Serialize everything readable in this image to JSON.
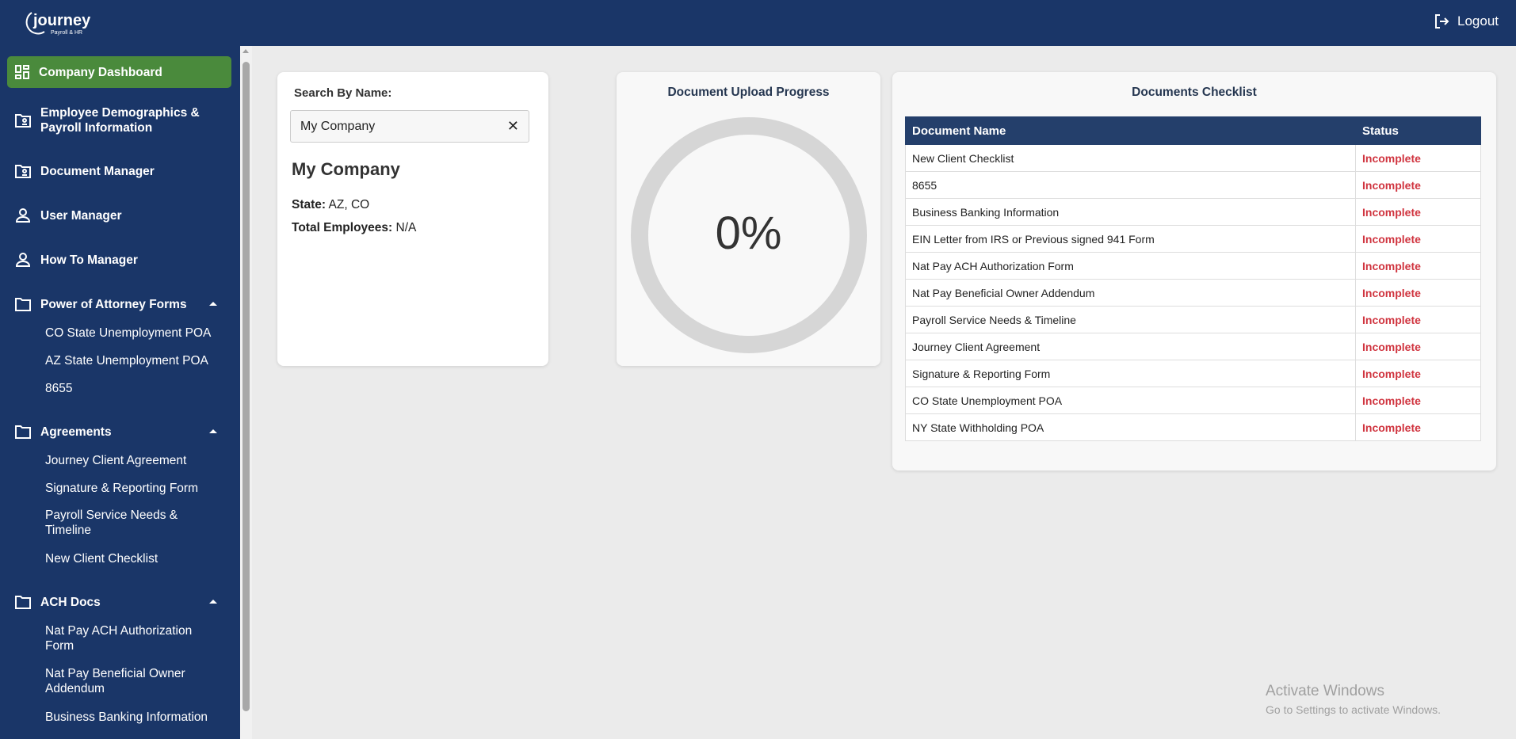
{
  "header": {
    "logo_text": "journey Payroll & HR",
    "logout_label": "Logout"
  },
  "sidebar": {
    "items": [
      {
        "label": "Company Dashboard",
        "icon": "dashboard-icon",
        "active": true
      },
      {
        "label": "Employee Demographics & Payroll Information",
        "icon": "folder-user-icon"
      },
      {
        "label": "Document Manager",
        "icon": "folder-user-icon"
      },
      {
        "label": "User Manager",
        "icon": "user-icon"
      },
      {
        "label": "How To Manager",
        "icon": "user-icon"
      }
    ],
    "groups": [
      {
        "label": "Power of Attorney Forms",
        "expanded": true,
        "children": [
          "CO State Unemployment POA",
          "AZ State Unemployment POA",
          "8655"
        ]
      },
      {
        "label": "Agreements",
        "expanded": true,
        "children": [
          "Journey Client Agreement",
          "Signature & Reporting Form",
          "Payroll Service Needs & Timeline",
          "New Client Checklist"
        ]
      },
      {
        "label": "ACH Docs",
        "expanded": true,
        "children": [
          "Nat Pay ACH Authorization Form",
          "Nat Pay Beneficial Owner Addendum",
          "Business Banking Information"
        ]
      }
    ]
  },
  "search": {
    "label": "Search By Name:",
    "value": "My Company",
    "company_name": "My Company",
    "state_label": "State:",
    "state_value": "AZ, CO",
    "employees_label": "Total Employees:",
    "employees_value": "N/A"
  },
  "progress": {
    "title": "Document Upload Progress",
    "value_text": "0%",
    "percent": 0,
    "track_color": "#d6d6d6"
  },
  "checklist": {
    "title": "Documents Checklist",
    "columns": [
      "Document Name",
      "Status"
    ],
    "rows": [
      [
        "New Client Checklist",
        "Incomplete"
      ],
      [
        "8655",
        "Incomplete"
      ],
      [
        "Business Banking Information",
        "Incomplete"
      ],
      [
        "EIN Letter from IRS or Previous signed 941 Form",
        "Incomplete"
      ],
      [
        "Nat Pay ACH Authorization Form",
        "Incomplete"
      ],
      [
        "Nat Pay Beneficial Owner Addendum",
        "Incomplete"
      ],
      [
        "Payroll Service Needs & Timeline",
        "Incomplete"
      ],
      [
        "Journey Client Agreement",
        "Incomplete"
      ],
      [
        "Signature & Reporting Form",
        "Incomplete"
      ],
      [
        "CO State Unemployment POA",
        "Incomplete"
      ],
      [
        "NY State Withholding POA",
        "Incomplete"
      ]
    ]
  },
  "watermark": {
    "title": "Activate Windows",
    "subtitle": "Go to Settings to activate Windows."
  },
  "colors": {
    "header": "#1a3668",
    "active": "#4a8a3c",
    "table_header": "#243f6b",
    "incomplete": "#d0343f"
  }
}
